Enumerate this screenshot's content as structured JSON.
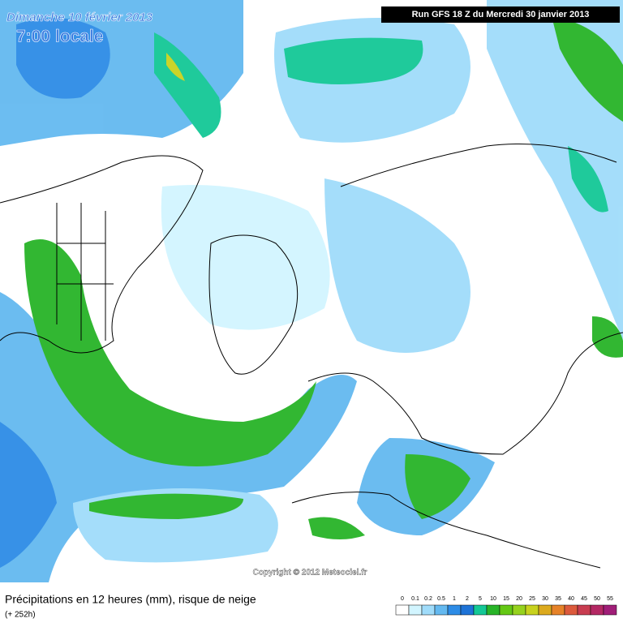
{
  "header": {
    "date": "Dimanche 10 février 2013",
    "time": "7:00 locale",
    "run": "Run GFS 18 Z du Mercredi 30 janvier 2013"
  },
  "copyright": "Copyright © 2012 Meteociel.fr",
  "footer": {
    "title": "Précipitations en 12 heures (mm), risque de neige",
    "lead": "(+ 252h)"
  },
  "legend": {
    "levels": [
      0,
      0.1,
      0.2,
      0.5,
      1,
      2,
      5,
      10,
      15,
      20,
      25,
      30,
      35,
      40,
      45,
      50,
      55
    ],
    "colors": [
      "#ffffff",
      "#d2f5ff",
      "#a0dcfa",
      "#64b9f0",
      "#2d8ce6",
      "#1e73d7",
      "#14c896",
      "#28b428",
      "#64c814",
      "#96d21e",
      "#c8d21e",
      "#dcaa1e",
      "#e68228",
      "#dc5a3c",
      "#c83c50",
      "#b42864",
      "#a01e78"
    ]
  }
}
